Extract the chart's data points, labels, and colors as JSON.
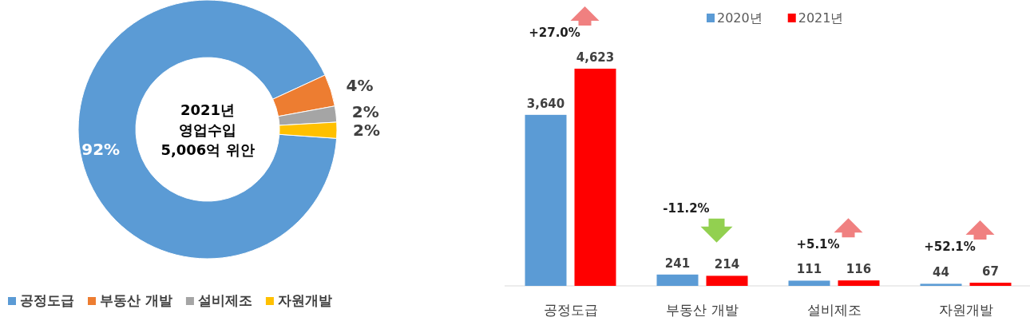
{
  "chart_data": [
    {
      "type": "donut",
      "categories": [
        "공정도급",
        "부동산 개발",
        "설비제조",
        "자원개발"
      ],
      "values": [
        92,
        4,
        2,
        2
      ],
      "colors": [
        "#5b9bd5",
        "#ed7d31",
        "#a5a5a5",
        "#ffc000"
      ],
      "value_labels": [
        "92%",
        "4%",
        "2%",
        "2%"
      ],
      "legend": "bottom",
      "annotations": [
        "2021년",
        "영업수입",
        "5,006억  위안"
      ]
    },
    {
      "type": "bar",
      "categories": [
        "공정도급",
        "부동산 개발",
        "설비제조",
        "자원개발"
      ],
      "series": [
        {
          "name": "2020년",
          "color": "#5b9bd5",
          "values": [
            3640,
            241,
            111,
            44
          ],
          "value_labels": [
            "3,640",
            "241",
            "111",
            "44"
          ]
        },
        {
          "name": "2021년",
          "color": "#ff0000",
          "values": [
            4623,
            214,
            116,
            67
          ],
          "value_labels": [
            "4,623",
            "214",
            "116",
            "67"
          ]
        }
      ],
      "legend": "top",
      "annotations": [
        "+27.0%",
        "-11.2%",
        "+5.1%",
        "+52.1%"
      ]
    }
  ]
}
